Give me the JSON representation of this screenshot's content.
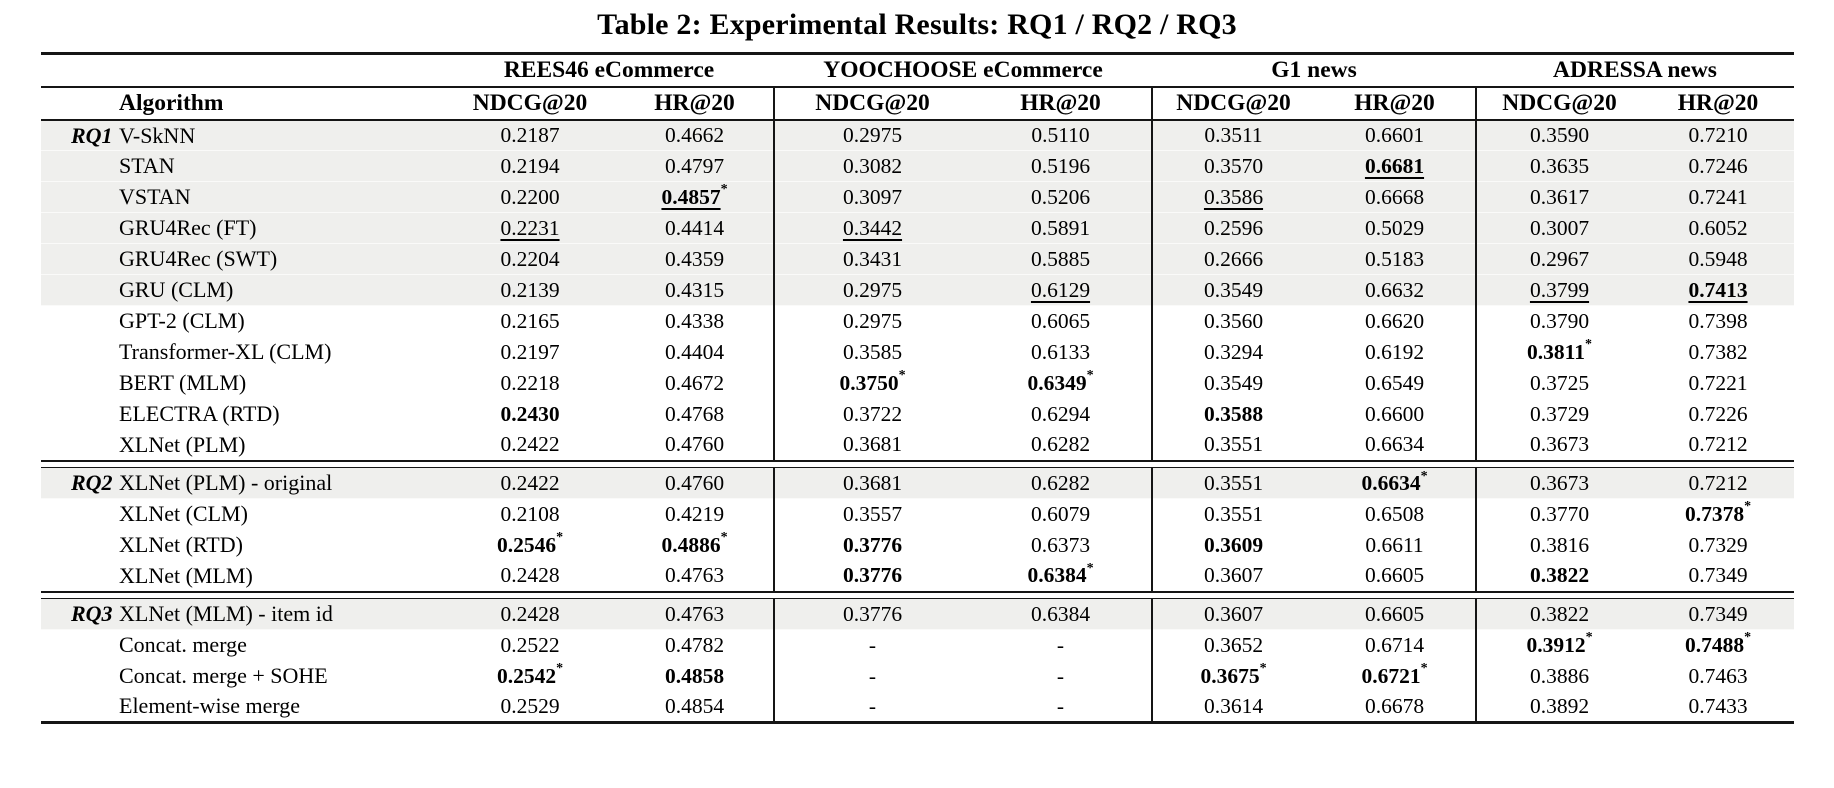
{
  "title": "Table 2: Experimental Results: RQ1 / RQ2 / RQ3",
  "colors": {
    "text": "#000000",
    "background": "#ffffff",
    "row_shade": "#efefed",
    "rule": "#151515"
  },
  "table": {
    "algorithm_header": "Algorithm",
    "group_headers": [
      "REES46 eCommerce",
      "YOOCHOOSE eCommerce",
      "G1 news",
      "ADRESSA news"
    ],
    "metric_headers": [
      "NDCG@20",
      "HR@20",
      "NDCG@20",
      "HR@20",
      "NDCG@20",
      "HR@20",
      "NDCG@20",
      "HR@20"
    ],
    "sections": [
      {
        "label": "RQ1",
        "rows": [
          {
            "algorithm": "V-SkNN",
            "shaded": true,
            "cells": [
              {
                "v": "0.2187"
              },
              {
                "v": "0.4662"
              },
              {
                "v": "0.2975"
              },
              {
                "v": "0.5110"
              },
              {
                "v": "0.3511"
              },
              {
                "v": "0.6601"
              },
              {
                "v": "0.3590"
              },
              {
                "v": "0.7210"
              }
            ]
          },
          {
            "algorithm": "STAN",
            "shaded": true,
            "cells": [
              {
                "v": "0.2194"
              },
              {
                "v": "0.4797"
              },
              {
                "v": "0.3082"
              },
              {
                "v": "0.5196"
              },
              {
                "v": "0.3570"
              },
              {
                "v": "0.6681",
                "b": true,
                "u": true
              },
              {
                "v": "0.3635"
              },
              {
                "v": "0.7246"
              }
            ]
          },
          {
            "algorithm": "VSTAN",
            "shaded": true,
            "cells": [
              {
                "v": "0.2200"
              },
              {
                "v": "0.4857",
                "b": true,
                "u": true,
                "s": true
              },
              {
                "v": "0.3097"
              },
              {
                "v": "0.5206"
              },
              {
                "v": "0.3586",
                "u": true
              },
              {
                "v": "0.6668"
              },
              {
                "v": "0.3617"
              },
              {
                "v": "0.7241"
              }
            ]
          },
          {
            "algorithm": "GRU4Rec (FT)",
            "shaded": true,
            "cells": [
              {
                "v": "0.2231",
                "u": true
              },
              {
                "v": "0.4414"
              },
              {
                "v": "0.3442",
                "u": true
              },
              {
                "v": "0.5891"
              },
              {
                "v": "0.2596"
              },
              {
                "v": "0.5029"
              },
              {
                "v": "0.3007"
              },
              {
                "v": "0.6052"
              }
            ]
          },
          {
            "algorithm": "GRU4Rec (SWT)",
            "shaded": true,
            "cells": [
              {
                "v": "0.2204"
              },
              {
                "v": "0.4359"
              },
              {
                "v": "0.3431"
              },
              {
                "v": "0.5885"
              },
              {
                "v": "0.2666"
              },
              {
                "v": "0.5183"
              },
              {
                "v": "0.2967"
              },
              {
                "v": "0.5948"
              }
            ]
          },
          {
            "algorithm": "GRU (CLM)",
            "shaded": true,
            "cells": [
              {
                "v": "0.2139"
              },
              {
                "v": "0.4315"
              },
              {
                "v": "0.2975"
              },
              {
                "v": "0.6129",
                "u": true
              },
              {
                "v": "0.3549"
              },
              {
                "v": "0.6632"
              },
              {
                "v": "0.3799",
                "u": true
              },
              {
                "v": "0.7413",
                "b": true,
                "u": true
              }
            ]
          },
          {
            "algorithm": "GPT-2 (CLM)",
            "shaded": false,
            "cells": [
              {
                "v": "0.2165"
              },
              {
                "v": "0.4338"
              },
              {
                "v": "0.2975"
              },
              {
                "v": "0.6065"
              },
              {
                "v": "0.3560"
              },
              {
                "v": "0.6620"
              },
              {
                "v": "0.3790"
              },
              {
                "v": "0.7398"
              }
            ]
          },
          {
            "algorithm": "Transformer-XL (CLM)",
            "shaded": false,
            "cells": [
              {
                "v": "0.2197"
              },
              {
                "v": "0.4404"
              },
              {
                "v": "0.3585"
              },
              {
                "v": "0.6133"
              },
              {
                "v": "0.3294"
              },
              {
                "v": "0.6192"
              },
              {
                "v": "0.3811",
                "b": true,
                "s": true
              },
              {
                "v": "0.7382"
              }
            ]
          },
          {
            "algorithm": "BERT (MLM)",
            "shaded": false,
            "cells": [
              {
                "v": "0.2218"
              },
              {
                "v": "0.4672"
              },
              {
                "v": "0.3750",
                "b": true,
                "s": true
              },
              {
                "v": "0.6349",
                "b": true,
                "s": true
              },
              {
                "v": "0.3549"
              },
              {
                "v": "0.6549"
              },
              {
                "v": "0.3725"
              },
              {
                "v": "0.7221"
              }
            ]
          },
          {
            "algorithm": "ELECTRA (RTD)",
            "shaded": false,
            "cells": [
              {
                "v": "0.2430",
                "b": true
              },
              {
                "v": "0.4768"
              },
              {
                "v": "0.3722"
              },
              {
                "v": "0.6294"
              },
              {
                "v": "0.3588",
                "b": true
              },
              {
                "v": "0.6600"
              },
              {
                "v": "0.3729"
              },
              {
                "v": "0.7226"
              }
            ]
          },
          {
            "algorithm": "XLNet (PLM)",
            "shaded": false,
            "cells": [
              {
                "v": "0.2422"
              },
              {
                "v": "0.4760"
              },
              {
                "v": "0.3681"
              },
              {
                "v": "0.6282"
              },
              {
                "v": "0.3551"
              },
              {
                "v": "0.6634"
              },
              {
                "v": "0.3673"
              },
              {
                "v": "0.7212"
              }
            ]
          }
        ]
      },
      {
        "label": "RQ2",
        "rows": [
          {
            "algorithm": "XLNet (PLM) - original",
            "shaded": true,
            "cells": [
              {
                "v": "0.2422"
              },
              {
                "v": "0.4760"
              },
              {
                "v": "0.3681"
              },
              {
                "v": "0.6282"
              },
              {
                "v": "0.3551"
              },
              {
                "v": "0.6634",
                "b": true,
                "s": true
              },
              {
                "v": "0.3673"
              },
              {
                "v": "0.7212"
              }
            ]
          },
          {
            "algorithm": "XLNet (CLM)",
            "shaded": false,
            "cells": [
              {
                "v": "0.2108"
              },
              {
                "v": "0.4219"
              },
              {
                "v": "0.3557"
              },
              {
                "v": "0.6079"
              },
              {
                "v": "0.3551"
              },
              {
                "v": "0.6508"
              },
              {
                "v": "0.3770"
              },
              {
                "v": "0.7378",
                "b": true,
                "s": true
              }
            ]
          },
          {
            "algorithm": "XLNet (RTD)",
            "shaded": false,
            "cells": [
              {
                "v": "0.2546",
                "b": true,
                "s": true
              },
              {
                "v": "0.4886",
                "b": true,
                "s": true
              },
              {
                "v": "0.3776",
                "b": true
              },
              {
                "v": "0.6373"
              },
              {
                "v": "0.3609",
                "b": true
              },
              {
                "v": "0.6611"
              },
              {
                "v": "0.3816"
              },
              {
                "v": "0.7329"
              }
            ]
          },
          {
            "algorithm": "XLNet (MLM)",
            "shaded": false,
            "cells": [
              {
                "v": "0.2428"
              },
              {
                "v": "0.4763"
              },
              {
                "v": "0.3776",
                "b": true
              },
              {
                "v": "0.6384",
                "b": true,
                "s": true
              },
              {
                "v": "0.3607"
              },
              {
                "v": "0.6605"
              },
              {
                "v": "0.3822",
                "b": true
              },
              {
                "v": "0.7349"
              }
            ]
          }
        ]
      },
      {
        "label": "RQ3",
        "rows": [
          {
            "algorithm": "XLNet (MLM) - item id",
            "shaded": true,
            "cells": [
              {
                "v": "0.2428"
              },
              {
                "v": "0.4763"
              },
              {
                "v": "0.3776"
              },
              {
                "v": "0.6384"
              },
              {
                "v": "0.3607"
              },
              {
                "v": "0.6605"
              },
              {
                "v": "0.3822"
              },
              {
                "v": "0.7349"
              }
            ]
          },
          {
            "algorithm": "Concat. merge",
            "shaded": false,
            "cells": [
              {
                "v": "0.2522"
              },
              {
                "v": "0.4782"
              },
              {
                "v": "-"
              },
              {
                "v": "-"
              },
              {
                "v": "0.3652"
              },
              {
                "v": "0.6714"
              },
              {
                "v": "0.3912",
                "b": true,
                "s": true
              },
              {
                "v": "0.7488",
                "b": true,
                "s": true
              }
            ]
          },
          {
            "algorithm": "Concat. merge + SOHE",
            "shaded": false,
            "cells": [
              {
                "v": "0.2542",
                "b": true,
                "s": true
              },
              {
                "v": "0.4858",
                "b": true
              },
              {
                "v": "-"
              },
              {
                "v": "-"
              },
              {
                "v": "0.3675",
                "b": true,
                "s": true
              },
              {
                "v": "0.6721",
                "b": true,
                "s": true
              },
              {
                "v": "0.3886"
              },
              {
                "v": "0.7463"
              }
            ]
          },
          {
            "algorithm": "Element-wise merge",
            "shaded": false,
            "cells": [
              {
                "v": "0.2529"
              },
              {
                "v": "0.4854"
              },
              {
                "v": "-"
              },
              {
                "v": "-"
              },
              {
                "v": "0.3614"
              },
              {
                "v": "0.6678"
              },
              {
                "v": "0.3892"
              },
              {
                "v": "0.7433"
              }
            ]
          }
        ]
      }
    ]
  }
}
